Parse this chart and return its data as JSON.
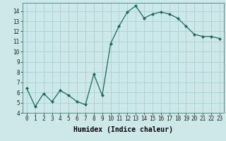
{
  "x": [
    0,
    1,
    2,
    3,
    4,
    5,
    6,
    7,
    8,
    9,
    10,
    11,
    12,
    13,
    14,
    15,
    16,
    17,
    18,
    19,
    20,
    21,
    22,
    23
  ],
  "y": [
    6.4,
    4.6,
    5.9,
    5.1,
    6.2,
    5.7,
    5.1,
    4.8,
    7.8,
    5.7,
    10.8,
    12.5,
    13.9,
    14.5,
    13.3,
    13.7,
    13.9,
    13.7,
    13.3,
    12.5,
    11.7,
    11.5,
    11.5,
    11.3
  ],
  "xlabel": "Humidex (Indice chaleur)",
  "bg_color": "#cce8e8",
  "line_color": "#1a6b5a",
  "grid_color": "#b0d4d4",
  "xlim": [
    -0.5,
    23.5
  ],
  "ylim": [
    4,
    14.8
  ],
  "yticks": [
    4,
    5,
    6,
    7,
    8,
    9,
    10,
    11,
    12,
    13,
    14
  ],
  "xticks": [
    0,
    1,
    2,
    3,
    4,
    5,
    6,
    7,
    8,
    9,
    10,
    11,
    12,
    13,
    14,
    15,
    16,
    17,
    18,
    19,
    20,
    21,
    22,
    23
  ],
  "tick_fontsize": 5.5,
  "xlabel_fontsize": 7.0
}
